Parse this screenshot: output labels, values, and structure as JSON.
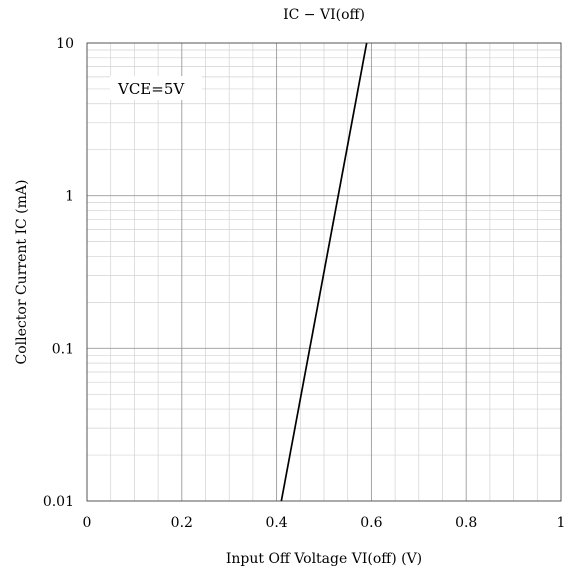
{
  "chart_data": {
    "type": "line",
    "title": "IC − VI(off)",
    "xlabel": "Input Off Voltage VI(off) (V)",
    "ylabel": "Collector Current IC (mA)",
    "xlim": [
      0,
      1
    ],
    "ylim": [
      0.01,
      10
    ],
    "yscale": "log",
    "grid": true,
    "x_ticks": [
      "0",
      "0.2",
      "0.4",
      "0.6",
      "0.8",
      "1"
    ],
    "y_ticks": [
      "10",
      "1",
      "0.1",
      "0.01"
    ],
    "annotation": "VCE=5V",
    "series": [
      {
        "x": [
          0.41,
          0.59
        ],
        "y": [
          0.01,
          10
        ]
      }
    ]
  }
}
